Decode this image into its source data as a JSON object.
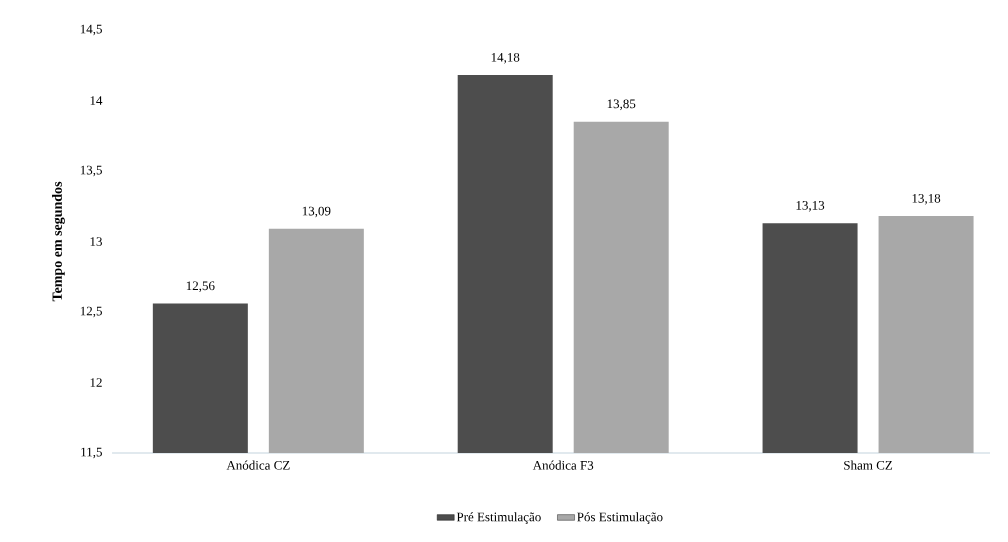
{
  "chart_data": {
    "type": "bar",
    "ylabel": "Tempo em segundos",
    "categories": [
      "Anódica CZ",
      "Anódica F3",
      "Sham CZ"
    ],
    "series": [
      {
        "name": "Pré Estimulação",
        "color": "#4d4d4d",
        "values": [
          12.56,
          14.18,
          13.13
        ],
        "value_labels": [
          "12,56",
          "14,18",
          "13,13"
        ]
      },
      {
        "name": "Pós Estimulação",
        "color": "#a8a8a8",
        "values": [
          13.09,
          13.85,
          13.18
        ],
        "value_labels": [
          "13,09",
          "13,85",
          "13,18"
        ]
      }
    ],
    "ylim": [
      11.5,
      14.5
    ],
    "yticks": [
      {
        "value": 11.5,
        "label": "11,5"
      },
      12,
      {
        "value": 12.5,
        "label": "12,5"
      },
      13,
      {
        "value": 13.5,
        "label": "13,5"
      },
      14,
      {
        "value": 14.5,
        "label": "14,5"
      }
    ],
    "grid": false,
    "legend": "bottom"
  }
}
